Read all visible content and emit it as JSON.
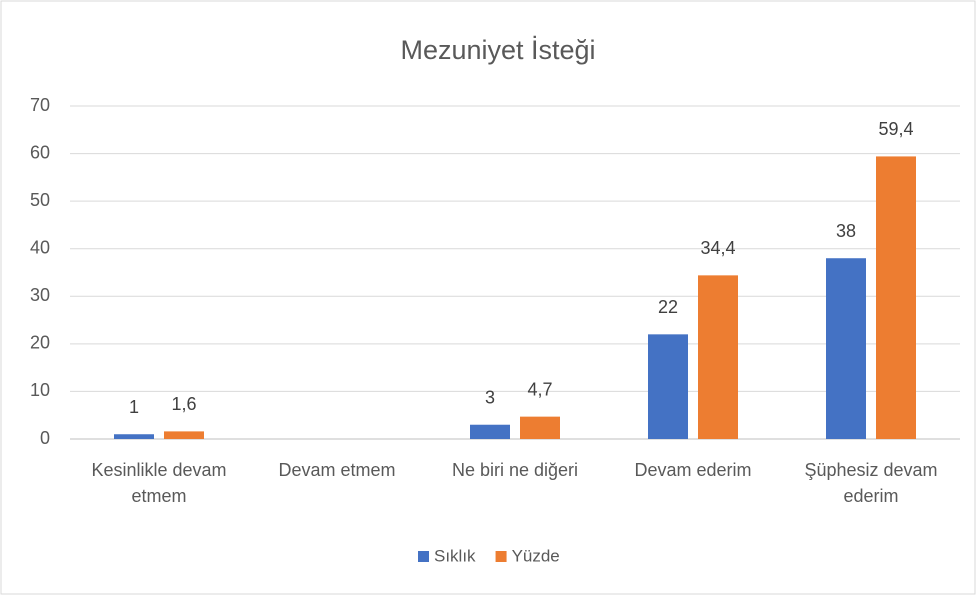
{
  "chart_data": {
    "type": "bar",
    "title": "Mezuniyet İsteği",
    "categories": [
      "Kesinlikle devam etmem",
      "Devam etmem",
      "Ne biri ne diğeri",
      "Devam ederim",
      "Şüphesiz devam ederim"
    ],
    "series": [
      {
        "name": "Sıklık",
        "color": "#4472c4",
        "values": [
          1,
          null,
          3,
          22,
          38
        ]
      },
      {
        "name": "Yüzde",
        "color": "#ed7d31",
        "values": [
          1.6,
          null,
          4.7,
          34.4,
          59.4
        ],
        "value_labels": [
          "1,6",
          null,
          "4,7",
          "34,4",
          "59,4"
        ]
      }
    ],
    "ylim": [
      0,
      70
    ],
    "yticks": [
      0,
      10,
      20,
      30,
      40,
      50,
      60,
      70
    ],
    "grid": true,
    "legend": "bottom"
  }
}
